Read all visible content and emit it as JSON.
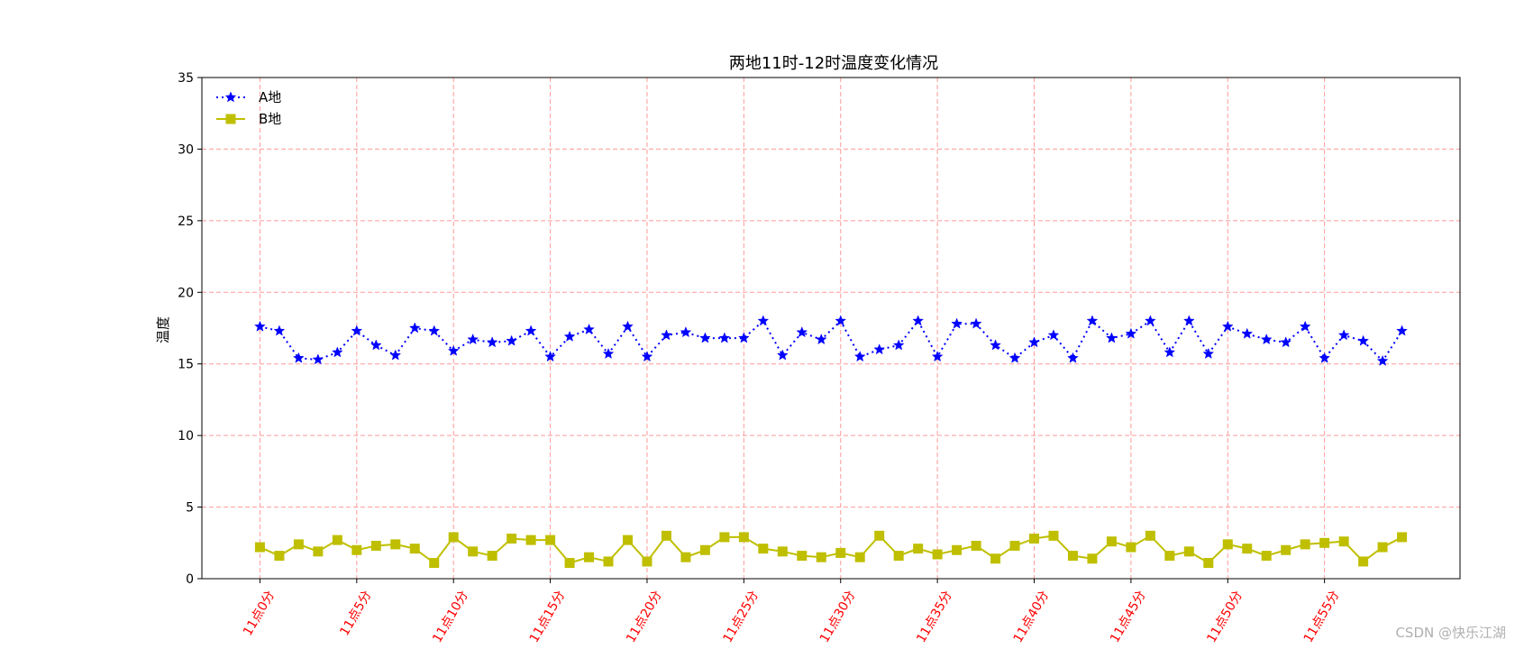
{
  "chart_data": {
    "type": "line",
    "title": "两地11时-12时温度变化情况",
    "xlabel": "",
    "ylabel": "温度",
    "ylim": [
      0,
      35
    ],
    "yticks": [
      0,
      5,
      10,
      15,
      20,
      25,
      30,
      35
    ],
    "grid": true,
    "grid_color": "#ff9999",
    "legend_position": "upper-left",
    "x_tick_color": "#ff0000",
    "xticks": [
      "11点0分",
      "11点5分",
      "11点10分",
      "11点15分",
      "11点20分",
      "11点25分",
      "11点30分",
      "11点35分",
      "11点40分",
      "11点45分",
      "11点50分",
      "11点55分"
    ],
    "x_minutes": [
      0,
      1,
      2,
      3,
      4,
      5,
      6,
      7,
      8,
      9,
      10,
      11,
      12,
      13,
      14,
      15,
      16,
      17,
      18,
      19,
      20,
      21,
      22,
      23,
      24,
      25,
      26,
      27,
      28,
      29,
      30,
      31,
      32,
      33,
      34,
      35,
      36,
      37,
      38,
      39,
      40,
      41,
      42,
      43,
      44,
      45,
      46,
      47,
      48,
      49,
      50,
      51,
      52,
      53,
      54,
      55,
      56,
      57,
      58,
      59
    ],
    "series": [
      {
        "name": "A地",
        "color": "#0000ff",
        "linestyle": "dotted",
        "marker": "star",
        "values": [
          17.6,
          17.3,
          15.4,
          15.3,
          15.8,
          17.3,
          16.3,
          15.6,
          17.5,
          17.3,
          15.9,
          16.7,
          16.5,
          16.6,
          17.3,
          15.5,
          16.9,
          17.4,
          15.7,
          17.6,
          15.5,
          17.0,
          17.2,
          16.8,
          16.8,
          16.8,
          18.0,
          15.6,
          17.2,
          16.7,
          18.0,
          15.5,
          16.0,
          16.3,
          18.0,
          15.5,
          17.8,
          17.8,
          16.3,
          15.4,
          16.5,
          17.0,
          15.4,
          18.0,
          16.8,
          17.1,
          18.0,
          15.8,
          18.0,
          15.7,
          17.6,
          17.1,
          16.7,
          16.5,
          17.6,
          15.4,
          17.0,
          16.6,
          15.2,
          17.3
        ]
      },
      {
        "name": "B地",
        "color": "#bfbf00",
        "linestyle": "solid",
        "marker": "square",
        "values": [
          2.2,
          1.6,
          2.4,
          1.9,
          2.7,
          2.0,
          2.3,
          2.4,
          2.1,
          1.1,
          2.9,
          1.9,
          1.6,
          2.8,
          2.7,
          2.7,
          1.1,
          1.5,
          1.2,
          2.7,
          1.2,
          3.0,
          1.5,
          2.0,
          2.9,
          2.9,
          2.1,
          1.9,
          1.6,
          1.5,
          1.8,
          1.5,
          3.0,
          1.6,
          2.1,
          1.7,
          2.0,
          2.3,
          1.4,
          2.3,
          2.8,
          3.0,
          1.6,
          1.4,
          2.6,
          2.2,
          3.0,
          1.6,
          1.9,
          1.1,
          2.4,
          2.1,
          1.6,
          2.0,
          2.4,
          2.5,
          2.6,
          1.2,
          2.2,
          2.9
        ]
      }
    ]
  },
  "watermark": "CSDN @快乐江湖"
}
